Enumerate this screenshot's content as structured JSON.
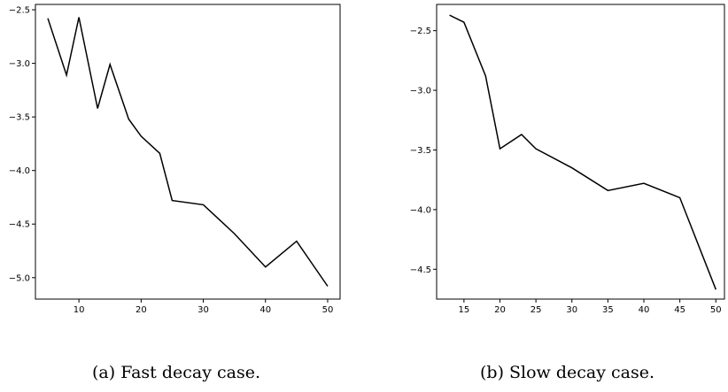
{
  "chart_data": [
    {
      "type": "line",
      "caption": "(a) Fast decay case.",
      "xlim": [
        3,
        52
      ],
      "ylim": [
        -5.2,
        -2.45
      ],
      "xticks": [
        10,
        20,
        30,
        40,
        50
      ],
      "yticks": [
        -2.5,
        -3.0,
        -3.5,
        -4.0,
        -4.5,
        -5.0
      ],
      "grid": false,
      "series": [
        {
          "color": "#000000",
          "x": [
            5,
            8,
            10,
            13,
            15,
            18,
            20,
            23,
            25,
            30,
            35,
            40,
            45,
            50
          ],
          "y": [
            -2.58,
            -3.11,
            -2.57,
            -3.42,
            -3.01,
            -3.52,
            -3.68,
            -3.84,
            -4.28,
            -4.32,
            -4.59,
            -4.9,
            -4.66,
            -5.08
          ]
        }
      ]
    },
    {
      "type": "line",
      "caption": "(b) Slow decay case.",
      "xlim": [
        11.2,
        51.2
      ],
      "ylim": [
        -4.75,
        -2.28
      ],
      "xticks": [
        15,
        20,
        25,
        30,
        35,
        40,
        45,
        50
      ],
      "yticks": [
        -2.5,
        -3.0,
        -3.5,
        -4.0,
        -4.5
      ],
      "grid": false,
      "series": [
        {
          "color": "#000000",
          "x": [
            13,
            15,
            18,
            20,
            23,
            25,
            30,
            35,
            40,
            45,
            50
          ],
          "y": [
            -2.37,
            -2.43,
            -2.88,
            -3.49,
            -3.37,
            -3.49,
            -3.65,
            -3.84,
            -3.78,
            -3.9,
            -4.67
          ]
        }
      ]
    }
  ]
}
